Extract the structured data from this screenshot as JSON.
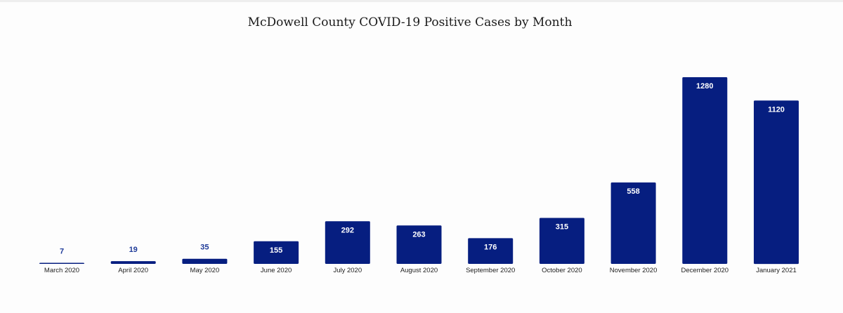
{
  "chart_data": {
    "type": "bar",
    "title": "McDowell County COVID-19 Positive Cases by Month",
    "categories": [
      "March 2020",
      "April 2020",
      "May 2020",
      "June 2020",
      "July 2020",
      "August 2020",
      "September 2020",
      "October 2020",
      "November 2020",
      "December 2020",
      "January 2021"
    ],
    "values": [
      7,
      19,
      35,
      155,
      292,
      263,
      176,
      315,
      558,
      1280,
      1120
    ],
    "xlabel": "",
    "ylabel": "",
    "ylim": [
      0,
      1280
    ],
    "grid": false,
    "legend": "none",
    "data_labels": true,
    "bar_color": "#061e80",
    "inside_label_color": "#ffffff",
    "outside_label_color": "#1f3b99"
  }
}
